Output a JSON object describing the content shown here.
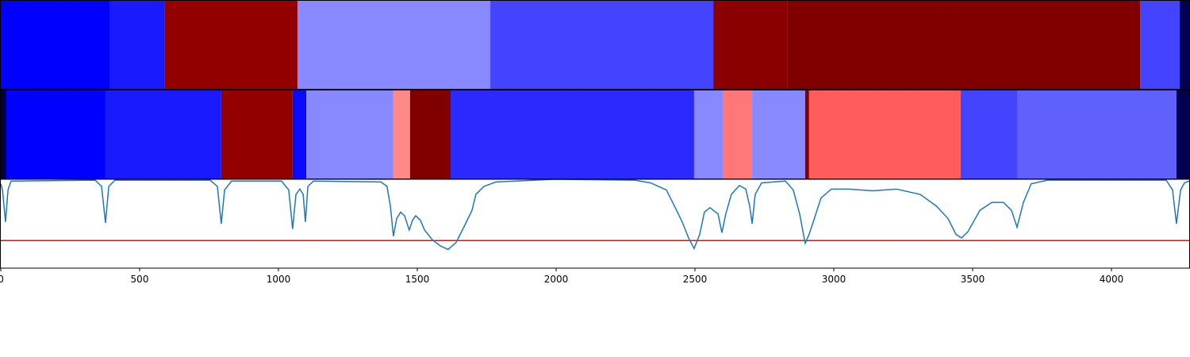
{
  "chart_data": [
    {
      "type": "strip",
      "xlim": [
        0,
        4280
      ],
      "edges": [
        0,
        394,
        589,
        1069,
        1763,
        2566,
        2834,
        4103,
        4246,
        4280
      ],
      "colors": [
        "#0000ff",
        "#1a1aff",
        "#920000",
        "#8888ff",
        "#4444ff",
        "#8a0000",
        "#800000",
        "#4444ff",
        "#000050"
      ]
    },
    {
      "type": "strip",
      "xlim": [
        0,
        4280
      ],
      "edges": [
        0,
        20,
        377,
        794,
        1051,
        1100,
        1414,
        1474,
        1620,
        2497,
        2600,
        2706,
        2897,
        2911,
        3457,
        3660,
        4234,
        4280
      ],
      "colors": [
        "#000040",
        "#0000ff",
        "#1a1aff",
        "#920000",
        "#0a0aff",
        "#8888ff",
        "#ff8888",
        "#800000",
        "#2a2aff",
        "#8888ff",
        "#ff7777",
        "#8888ff",
        "#800000",
        "#ff5c5c",
        "#4444ff",
        "#6060ff",
        "#000050"
      ]
    },
    {
      "type": "line",
      "xlim": [
        0,
        4280
      ],
      "ylim": [
        0,
        1
      ],
      "xticks": [
        0,
        500,
        1000,
        1500,
        2000,
        2500,
        3000,
        3500,
        4000
      ],
      "threshold": 0.31,
      "threshold_color": "#ff0000",
      "color": "#1f77b4",
      "x": [
        0,
        6,
        17,
        26,
        37,
        340,
        363,
        377,
        389,
        411,
        754,
        780,
        794,
        806,
        831,
        1011,
        1037,
        1051,
        1063,
        1077,
        1089,
        1097,
        1106,
        1126,
        1369,
        1391,
        1403,
        1414,
        1426,
        1440,
        1454,
        1471,
        1483,
        1494,
        1511,
        1526,
        1554,
        1583,
        1611,
        1640,
        1669,
        1697,
        1711,
        1740,
        1783,
        1997,
        2283,
        2340,
        2397,
        2426,
        2454,
        2477,
        2497,
        2517,
        2534,
        2554,
        2583,
        2597,
        2611,
        2631,
        2660,
        2683,
        2697,
        2706,
        2717,
        2740,
        2826,
        2854,
        2877,
        2897,
        2911,
        2926,
        2954,
        2991,
        3054,
        3140,
        3226,
        3311,
        3369,
        3411,
        3440,
        3460,
        3483,
        3526,
        3569,
        3611,
        3640,
        3660,
        3683,
        3711,
        3769,
        4197,
        4220,
        4234,
        4249,
        4263,
        4280
      ],
      "values": [
        0.95,
        0.88,
        0.52,
        0.88,
        0.98,
        0.99,
        0.92,
        0.51,
        0.92,
        0.99,
        0.99,
        0.92,
        0.5,
        0.88,
        0.98,
        0.98,
        0.88,
        0.44,
        0.83,
        0.89,
        0.83,
        0.52,
        0.92,
        0.98,
        0.97,
        0.92,
        0.7,
        0.36,
        0.56,
        0.63,
        0.59,
        0.43,
        0.54,
        0.59,
        0.54,
        0.43,
        0.32,
        0.25,
        0.21,
        0.29,
        0.47,
        0.65,
        0.83,
        0.92,
        0.97,
        1.0,
        0.99,
        0.96,
        0.88,
        0.7,
        0.52,
        0.34,
        0.22,
        0.38,
        0.63,
        0.68,
        0.61,
        0.4,
        0.61,
        0.83,
        0.93,
        0.89,
        0.7,
        0.5,
        0.83,
        0.96,
        0.98,
        0.88,
        0.61,
        0.28,
        0.38,
        0.52,
        0.79,
        0.89,
        0.89,
        0.87,
        0.89,
        0.83,
        0.7,
        0.56,
        0.38,
        0.34,
        0.41,
        0.65,
        0.74,
        0.74,
        0.65,
        0.46,
        0.74,
        0.95,
        0.99,
        0.99,
        0.88,
        0.5,
        0.88,
        0.96,
        0.98
      ]
    }
  ]
}
